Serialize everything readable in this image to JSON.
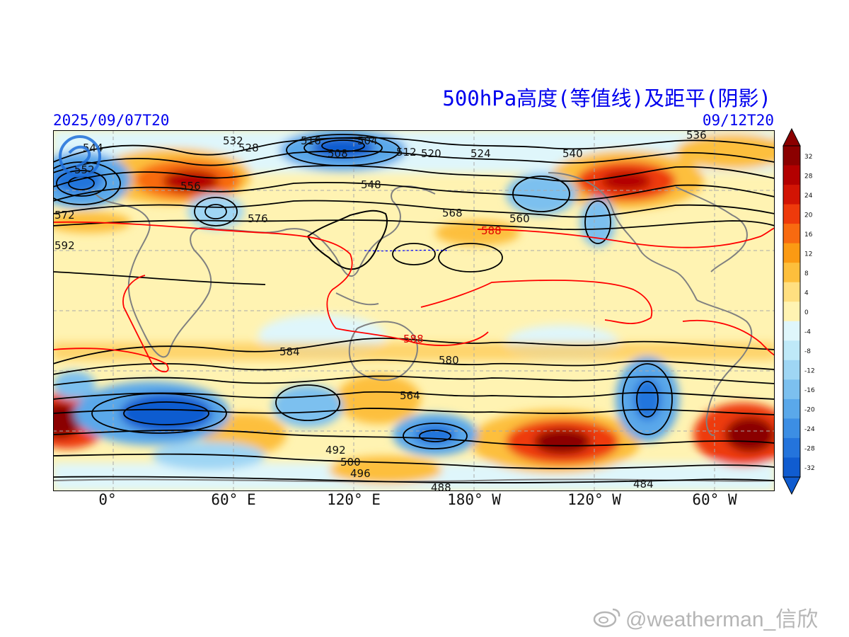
{
  "title": "500hPa高度(等值线)及距平(阴影)",
  "init_time": "2025/09/07T20",
  "valid_time": "09/12T20",
  "lon_labels": [
    "0°",
    "60° E",
    "120° E",
    "180° W",
    "120° W",
    "60° W"
  ],
  "colorbar": {
    "ticks": [
      "32",
      "28",
      "24",
      "20",
      "16",
      "12",
      "8",
      "4",
      "0",
      "-4",
      "-8",
      "-12",
      "-16",
      "-20",
      "-24",
      "-28",
      "-32"
    ],
    "colors_high_to_low": [
      "#8b0000",
      "#b30000",
      "#d21404",
      "#ee3a0b",
      "#f86a10",
      "#fb9a13",
      "#fdbf3c",
      "#ffdf80",
      "#fff3b2",
      "#dff6fb",
      "#bfe9f8",
      "#9fd6f4",
      "#7cc0ef",
      "#5aa8ea",
      "#3c8ee4",
      "#2474dc",
      "#105cd0"
    ]
  },
  "contour_labels": [
    "544",
    "532",
    "528",
    "516",
    "504",
    "508",
    "512",
    "520",
    "524",
    "548",
    "540",
    "536",
    "552",
    "556",
    "560",
    "564",
    "568",
    "572",
    "576",
    "580",
    "584",
    "588",
    "592",
    "500",
    "496",
    "492",
    "488",
    "484"
  ],
  "subtropical_high_label": "588",
  "watermark": "@weatherman_信欣",
  "colors": {
    "title_blue": "#0000ee",
    "contour": "#000000",
    "ridge_contour": "#ff0000",
    "coastline": "#808080"
  }
}
